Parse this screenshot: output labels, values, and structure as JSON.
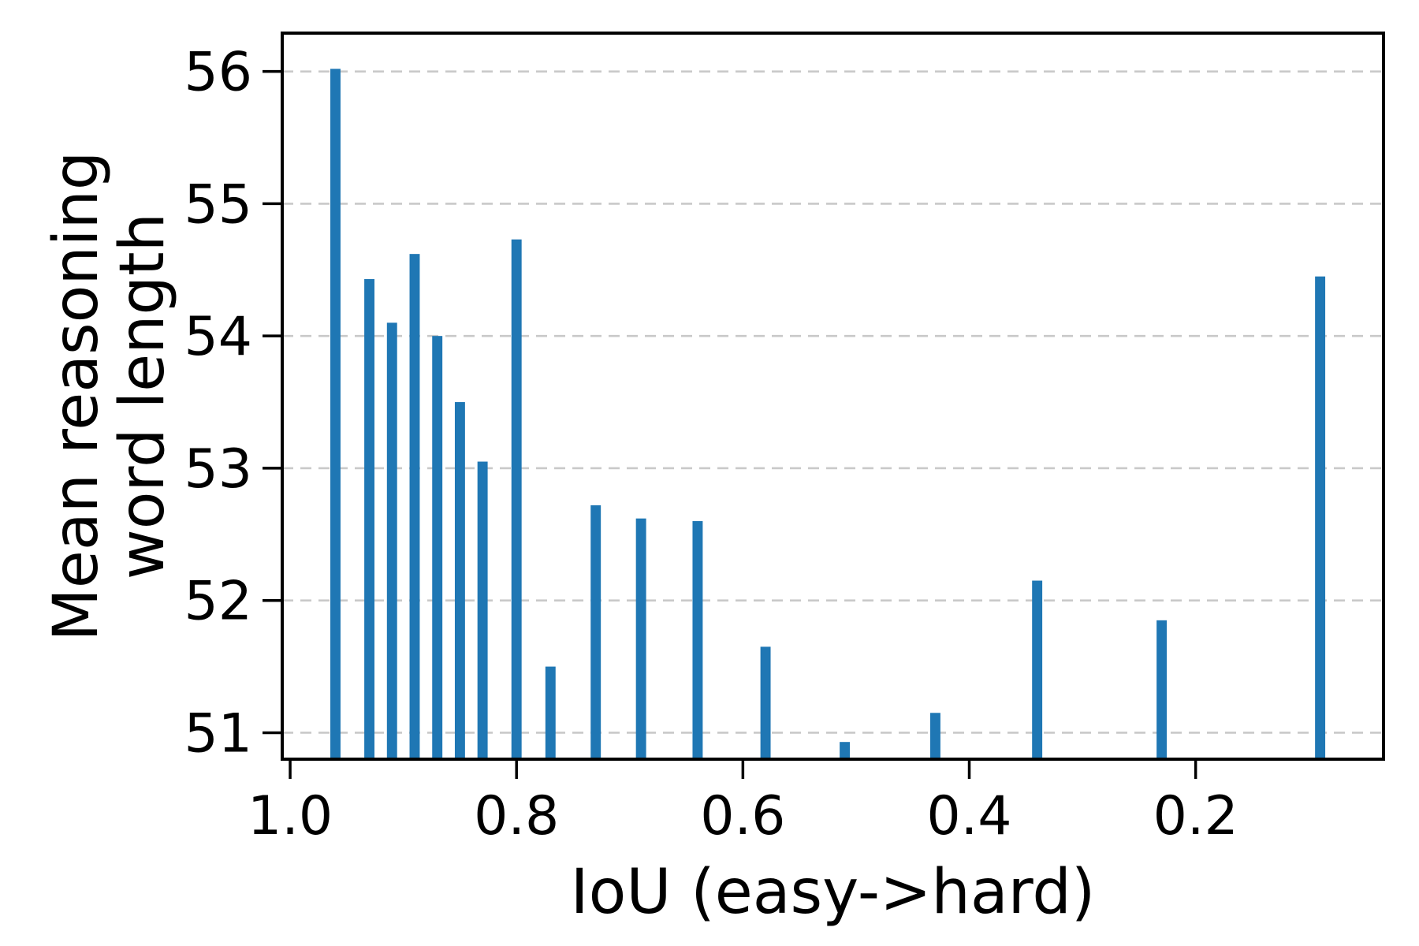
{
  "figure": {
    "background": "#ffffff",
    "xlabel": "IoU (easy->hard)",
    "ylabel_line1": "Mean reasoning",
    "ylabel_line2": "word length"
  },
  "chart_data": {
    "type": "bar",
    "title": "",
    "xlabel": "IoU (easy->hard)",
    "ylabel": "Mean reasoning word length",
    "x": [
      0.96,
      0.93,
      0.91,
      0.89,
      0.87,
      0.85,
      0.83,
      0.8,
      0.77,
      0.73,
      0.69,
      0.64,
      0.58,
      0.51,
      0.43,
      0.34,
      0.23,
      0.09
    ],
    "values": [
      56.02,
      54.43,
      54.1,
      54.62,
      54.0,
      53.5,
      53.05,
      54.73,
      51.5,
      52.72,
      52.62,
      52.6,
      51.65,
      50.93,
      51.15,
      52.15,
      51.85,
      54.45
    ],
    "bar_width": 0.009,
    "bar_color": "#1f77b4",
    "xticks": [
      1.0,
      0.8,
      0.6,
      0.4,
      0.2
    ],
    "xtick_labels": [
      "1.0",
      "0.8",
      "0.6",
      "0.4",
      "0.2"
    ],
    "yticks": [
      51,
      52,
      53,
      54,
      55,
      56
    ],
    "ytick_labels": [
      "51",
      "52",
      "53",
      "54",
      "55",
      "56"
    ],
    "xlim": [
      1.007,
      0.034
    ],
    "ylim": [
      50.8,
      56.29
    ],
    "x_axis_reversed": true,
    "grid": "horizontal-dashed",
    "grid_color": "#c9c9c9",
    "axis_color": "#000000",
    "legend": "none"
  }
}
